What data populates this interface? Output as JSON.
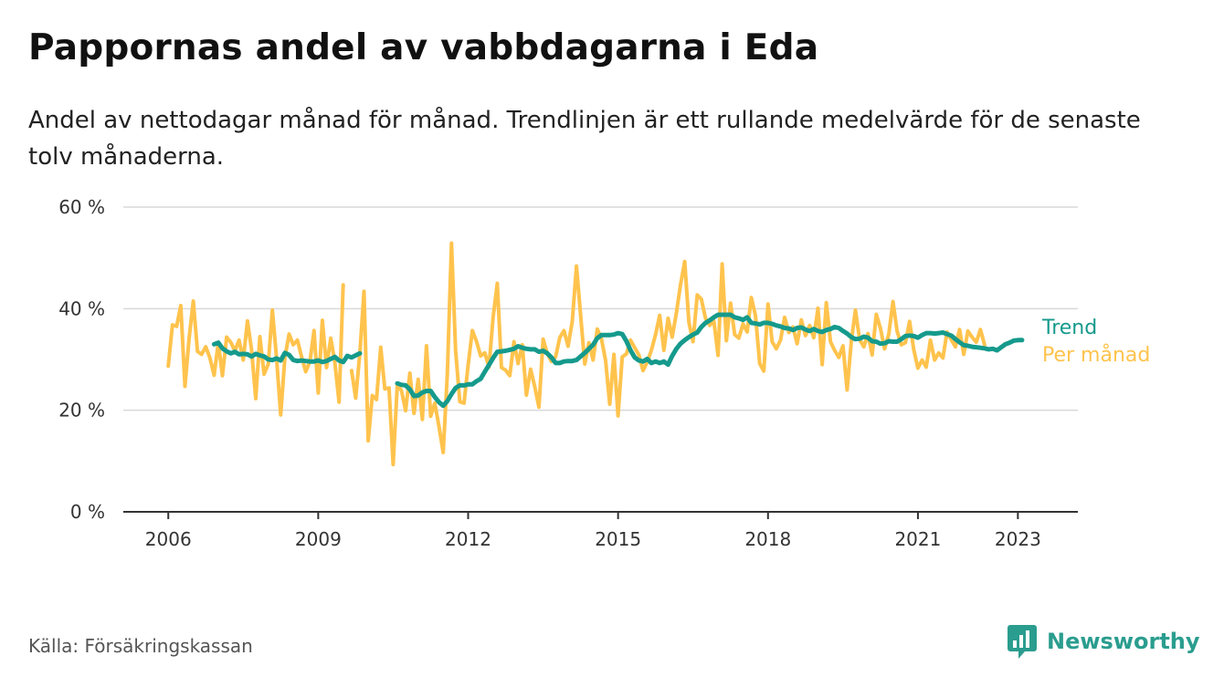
{
  "header": {
    "title": "Pappornas andel av vabbdagarna i Eda",
    "subtitle": "Andel av nettodagar månad för månad. Trendlinjen är ett rullande medelvärde för de senaste tolv månaderna."
  },
  "footer": {
    "source": "Källa: Försäkringskassan",
    "brand": "Newsworthy",
    "brand_icon": "newsworthy-logo-icon"
  },
  "colors": {
    "monthly": "#ffc34d",
    "trend": "#159a8c",
    "grid": "#d9d9d9",
    "axis": "#333333",
    "brand": "#2a9d8f"
  },
  "chart_data": {
    "type": "line",
    "y_tick_labels": [
      "0 %",
      "20 %",
      "40 %",
      "60 %"
    ],
    "y_ticks": [
      0,
      20,
      40,
      60
    ],
    "ylim": [
      0,
      60
    ],
    "x_tick_labels": [
      "2006",
      "2009",
      "2012",
      "2015",
      "2018",
      "2021",
      "2023"
    ],
    "x_ticks": [
      2006,
      2009,
      2012,
      2015,
      2018,
      2021,
      2023
    ],
    "xlim": [
      2005.1,
      2024.2
    ],
    "grid": true,
    "legend_position": "right",
    "series": [
      {
        "name": "Per månad",
        "color": "#ffc34d",
        "segments": [
          {
            "x_start": "2006-01",
            "values": [
              28.7,
              36.8,
              36.5,
              40.6,
              24.7,
              34.1,
              41.5,
              31.6,
              31.0,
              32.5,
              30.3,
              26.9,
              33.3,
              26.8,
              34.4,
              33.4,
              31.7,
              33.8,
              29.9,
              37.6,
              31.9,
              22.3,
              34.5,
              27.1,
              29.1,
              39.7,
              30.2,
              19.1,
              30.4,
              35.0,
              32.9,
              33.8,
              30.6,
              27.6,
              29.6,
              35.7,
              23.4,
              37.7,
              28.4,
              34.2,
              29.4,
              21.6,
              44.7
            ]
          },
          {
            "x_start": "2009-09",
            "values": [
              27.8,
              22.4,
              31.3,
              43.4,
              14.0,
              22.9,
              22.1,
              32.4,
              24.2,
              24.4,
              9.3,
              25.2,
              23.8,
              19.9,
              27.3,
              19.4,
              26.1,
              18.2,
              32.7,
              18.8,
              21.4,
              16.8,
              11.7,
              27.0,
              52.9,
              31.7,
              21.7,
              21.4,
              28.9,
              35.7,
              33.6,
              30.7,
              31.3,
              28.5,
              38.4,
              45.0,
              28.4,
              27.9,
              26.8,
              33.5,
              29.2,
              32.9,
              23.0,
              28.1,
              24.6,
              20.6,
              34.0,
              31.2,
              29.6,
              30.5,
              34.3,
              35.7,
              32.6,
              37.5,
              48.4,
              38.8,
              29.1,
              33.3,
              29.9,
              36.0,
              34.1,
              29.8,
              21.2,
              31.0,
              18.9,
              30.5,
              31.1,
              33.8,
              32.3,
              30.9,
              27.8,
              29.5,
              31.8,
              34.9,
              38.7,
              31.8,
              38.1,
              34.4,
              39.2,
              44.7,
              49.3,
              37.3,
              33.5,
              42.7,
              41.9,
              38.1,
              36.7,
              37.6,
              30.8,
              48.8,
              33.7,
              41.1,
              34.9,
              34.2,
              37.0,
              35.4,
              42.2,
              38.6,
              29.2,
              27.7,
              40.9,
              33.5,
              32.1,
              33.8,
              38.3,
              35.3,
              36.4,
              33.1,
              37.8,
              34.7,
              36.7,
              34.3,
              40.1,
              29.0,
              41.2,
              33.5,
              31.8,
              30.4,
              32.7,
              24.0,
              33.6,
              39.7,
              33.9,
              32.5,
              35.1,
              30.9,
              38.9,
              36.1,
              32.1,
              35.0,
              41.4,
              35.6,
              32.9,
              33.3,
              37.5,
              31.9,
              28.3,
              29.9,
              28.5,
              33.8,
              29.9,
              31.3,
              30.3,
              35.4,
              33.9,
              32.5,
              35.9,
              31.0,
              35.6,
              34.4,
              33.4,
              35.9,
              32.9
            ]
          }
        ]
      },
      {
        "name": "Trend",
        "color": "#159a8c",
        "segments": [
          {
            "x_start": "2006-12",
            "values": [
              33.0,
              33.3,
              32.2,
              31.6,
              31.2,
              31.5,
              31.0,
              31.1,
              31.0,
              30.6,
              31.1,
              30.8,
              30.6,
              30.0,
              29.9,
              30.2,
              29.8,
              31.3,
              30.9,
              29.9,
              29.7,
              29.8,
              29.7,
              29.6,
              29.6,
              29.8,
              29.5,
              29.7,
              30.1,
              30.5,
              29.8,
              29.5,
              30.7,
              30.4,
              30.8,
              31.2
            ]
          },
          {
            "x_start": "2010-08",
            "values": [
              25.3,
              25.0,
              24.9,
              24.1,
              22.8,
              22.9,
              23.5,
              23.8,
              23.8,
              22.6,
              21.6,
              20.9,
              21.8,
              23.2,
              24.4,
              24.9,
              24.9,
              25.1,
              25.1,
              25.7,
              26.2,
              27.6,
              28.9,
              30.3,
              31.5,
              31.6,
              31.7,
              31.9,
              32.1,
              32.6,
              32.3,
              32.1,
              32.0,
              32.0,
              31.5,
              31.7,
              31.2,
              30.4,
              29.3,
              29.3,
              29.6,
              29.7,
              29.7,
              29.9,
              30.6,
              31.3,
              32.1,
              32.9,
              34.2,
              34.8,
              34.8,
              34.8,
              34.9,
              35.2,
              35.0,
              33.6,
              31.8,
              30.4,
              29.8,
              29.6,
              30.1,
              29.3,
              29.6,
              29.3,
              29.6,
              29.0,
              30.7,
              32.1,
              33.1,
              33.8,
              34.4,
              34.9,
              35.3,
              36.4,
              37.2,
              37.7,
              38.3,
              38.8,
              38.8,
              38.8,
              38.8,
              38.3,
              38.1,
              37.8,
              38.3,
              37.2,
              37.1,
              36.9,
              37.2,
              37.2,
              37.0,
              36.7,
              36.5,
              36.2,
              36.1,
              35.8,
              36.2,
              36.3,
              35.9,
              35.6,
              36.0,
              35.6,
              35.4,
              35.8,
              36.0,
              36.4,
              36.2,
              35.6,
              35.1,
              34.4,
              34.0,
              34.1,
              34.5,
              34.3,
              33.6,
              33.5,
              33.1,
              33.2,
              33.6,
              33.5,
              33.5,
              34.0,
              34.6,
              34.7,
              34.6,
              34.3,
              34.8,
              35.2,
              35.2,
              35.1,
              35.2,
              35.3,
              35.0,
              34.7,
              34.0,
              33.4,
              32.8,
              32.7,
              32.5,
              32.4,
              32.3,
              32.2,
              32.0,
              32.1,
              31.8,
              32.4,
              33.0,
              33.3,
              33.7,
              33.8,
              33.8
            ]
          }
        ]
      }
    ]
  }
}
